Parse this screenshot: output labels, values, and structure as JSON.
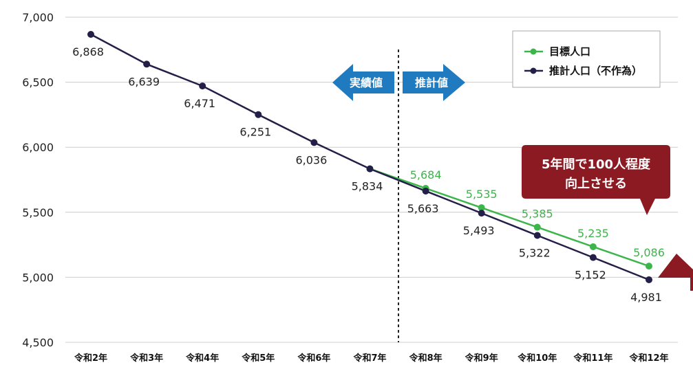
{
  "chart_data": {
    "type": "line",
    "x": [
      "令和2年",
      "令和3年",
      "令和4年",
      "令和5年",
      "令和6年",
      "令和7年",
      "令和8年",
      "令和9年",
      "令和10年",
      "令和11年",
      "令和12年"
    ],
    "ylim": [
      4500,
      7000
    ],
    "yticks": [
      "7,000",
      "6,500",
      "6,000",
      "5,500",
      "5,000",
      "4,500"
    ],
    "grid": true,
    "legend_position": "top-right",
    "series": [
      {
        "name": "推計人口（不作為）",
        "color": "#231f48",
        "values": [
          6868,
          6639,
          6471,
          6251,
          6036,
          5834,
          5663,
          5493,
          5322,
          5152,
          4981
        ],
        "labels": [
          "6,868",
          "6,639",
          "6,471",
          "6,251",
          "6,036",
          "5,834",
          "5,663",
          "5,493",
          "5,322",
          "5,152",
          "4,981"
        ]
      },
      {
        "name": "目標人口",
        "color": "#3cb54a",
        "values": [
          null,
          null,
          null,
          null,
          null,
          5834,
          5684,
          5535,
          5385,
          5235,
          5086
        ],
        "labels": [
          "",
          "",
          "",
          "",
          "",
          "",
          "5,684",
          "5,535",
          "5,385",
          "5,235",
          "5,086"
        ]
      }
    ],
    "annotations": {
      "actual_label": "実績値",
      "projected_label": "推計値",
      "callout_line1": "5年間で100人程度",
      "callout_line2": "向上させる",
      "arrow_color": "#1f7ac0",
      "callout_color": "#8b1a22"
    }
  }
}
